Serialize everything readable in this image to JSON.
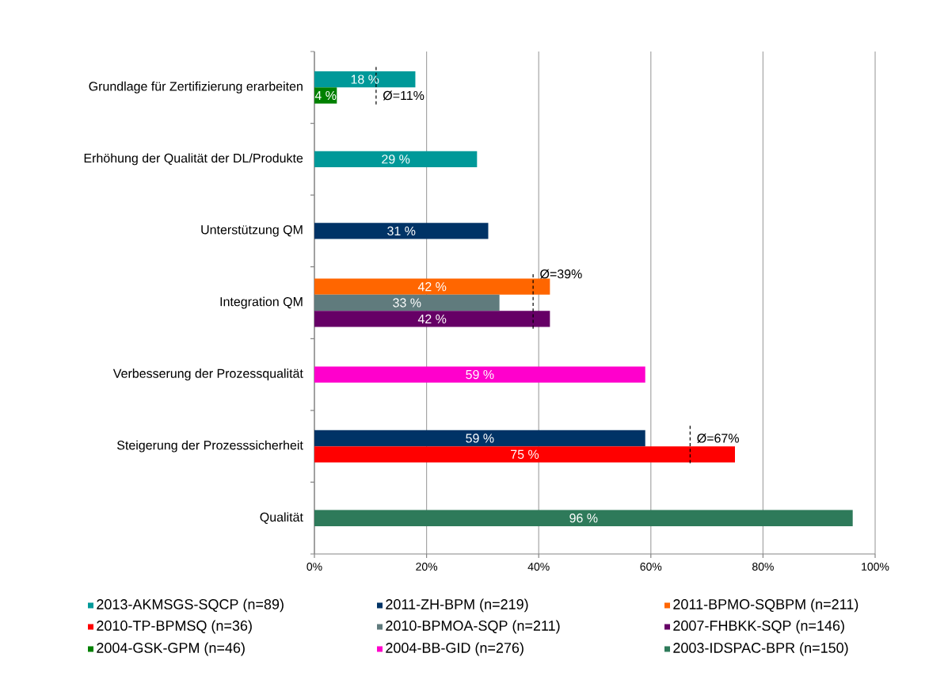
{
  "chart_data": {
    "type": "bar",
    "orientation": "horizontal",
    "categories": [
      "Grundlage für Zertifizierung erarbeiten",
      "Erhöhung der Qualität der DL/Produkte",
      "Unterstützung QM",
      "Integration QM",
      "Verbesserung der Prozessqualität",
      "Steigerung der Prozesssicherheit",
      "Qualität"
    ],
    "series": [
      {
        "name": "2013-AKMSGS-SQCP (n=89)",
        "color": "#009999",
        "values": [
          18,
          29,
          null,
          null,
          null,
          null,
          null
        ],
        "value_labels": [
          "18 %",
          "29 %",
          null,
          null,
          null,
          null,
          null
        ]
      },
      {
        "name": "2011-ZH-BPM (n=219)",
        "color": "#003366",
        "values": [
          null,
          null,
          31,
          null,
          null,
          59,
          null
        ],
        "value_labels": [
          null,
          null,
          "31 %",
          null,
          null,
          "59 %",
          null
        ]
      },
      {
        "name": "2011-BPMO-SQBPM (n=211)",
        "color": "#ff6600",
        "values": [
          null,
          null,
          null,
          42,
          null,
          null,
          null
        ],
        "value_labels": [
          null,
          null,
          null,
          "42 %",
          null,
          null,
          null
        ]
      },
      {
        "name": "2010-TP-BPMSQ (n=36)",
        "color": "#ff0000",
        "values": [
          null,
          null,
          null,
          null,
          null,
          75,
          null
        ],
        "value_labels": [
          null,
          null,
          null,
          null,
          null,
          "75 %",
          null
        ]
      },
      {
        "name": "2010-BPMOA-SQP (n=211)",
        "color": "#607b7d",
        "values": [
          null,
          null,
          null,
          33,
          null,
          null,
          null
        ],
        "value_labels": [
          null,
          null,
          null,
          "33 %",
          null,
          null,
          null
        ]
      },
      {
        "name": "2007-FHBKK-SQP (n=146)",
        "color": "#660066",
        "values": [
          null,
          null,
          null,
          42,
          null,
          null,
          null
        ],
        "value_labels": [
          null,
          null,
          null,
          "42 %",
          null,
          null,
          null
        ]
      },
      {
        "name": "2004-GSK-GPM (n=46)",
        "color": "#008000",
        "values": [
          4,
          null,
          null,
          null,
          null,
          null,
          null
        ],
        "value_labels": [
          "4 %",
          null,
          null,
          null,
          null,
          null,
          null
        ]
      },
      {
        "name": "2004-BB-GID (n=276)",
        "color": "#ff00cc",
        "values": [
          null,
          null,
          null,
          null,
          59,
          null,
          null
        ],
        "value_labels": [
          null,
          null,
          null,
          null,
          "59 %",
          null,
          null
        ]
      },
      {
        "name": "2003-IDSPAC-BPR (n=150)",
        "color": "#2e7a5a",
        "values": [
          null,
          null,
          null,
          null,
          null,
          null,
          96
        ],
        "value_labels": [
          null,
          null,
          null,
          null,
          null,
          null,
          "96 %"
        ]
      }
    ],
    "xlim": [
      0,
      100
    ],
    "xticks": [
      {
        "value": 0,
        "label": "0%"
      },
      {
        "value": 20,
        "label": "20%"
      },
      {
        "value": 40,
        "label": "40%"
      },
      {
        "value": 60,
        "label": "60%"
      },
      {
        "value": 80,
        "label": "80%"
      },
      {
        "value": 100,
        "label": "100%"
      }
    ],
    "grid": "x",
    "legend": "bottom",
    "ref_lines": [
      {
        "axis": "x",
        "value": 11,
        "label": "Ø=11%",
        "line_style": "dashed"
      },
      {
        "axis": "x",
        "value": 39,
        "label": "Ø=39%",
        "line_style": "dashed"
      },
      {
        "axis": "x",
        "value": 67,
        "label": "Ø=67%",
        "line_style": "dashed"
      }
    ]
  }
}
